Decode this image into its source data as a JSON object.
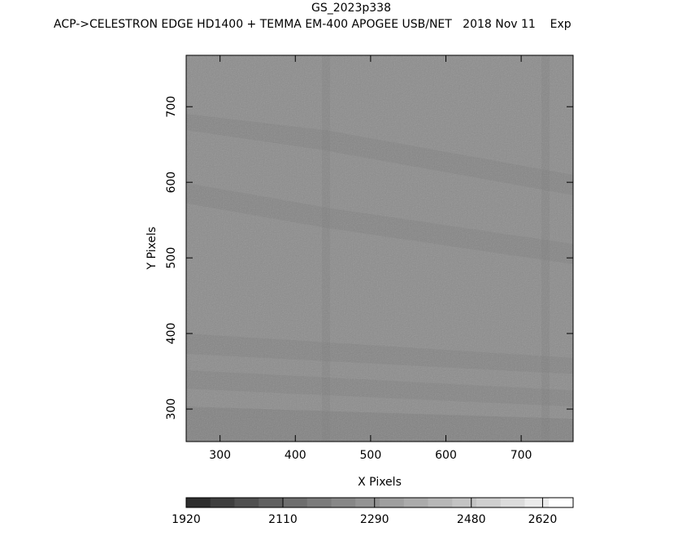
{
  "chart_data": {
    "type": "image",
    "title": "GS_2023p338",
    "subtitle": "ACP->CELESTRON EDGE HD1400 + TEMMA EM-400 APOGEE USB/NET   2018 Nov 11    Exp",
    "x_label": "X Pixels",
    "y_label": "Y Pixels",
    "xlim": [
      255,
      769
    ],
    "xticks": [
      300,
      400,
      500,
      600,
      700
    ],
    "ylim": [
      257,
      768
    ],
    "yticks": [
      300,
      400,
      500,
      600,
      700
    ],
    "colorbar": {
      "lim": [
        1920,
        2680
      ],
      "ticks": [
        1920,
        2110,
        2290,
        2480,
        2620
      ],
      "colors": [
        "#2e2e2e",
        "#3f3f3f",
        "#505050",
        "#606060",
        "#6e6e6e",
        "#7b7b7b",
        "#878787",
        "#939393",
        "#9f9f9f",
        "#ababab",
        "#b7b7b7",
        "#c3c3c3",
        "#cfcfcf",
        "#dcdcdc",
        "#ebebeb",
        "#ffffff"
      ]
    }
  }
}
